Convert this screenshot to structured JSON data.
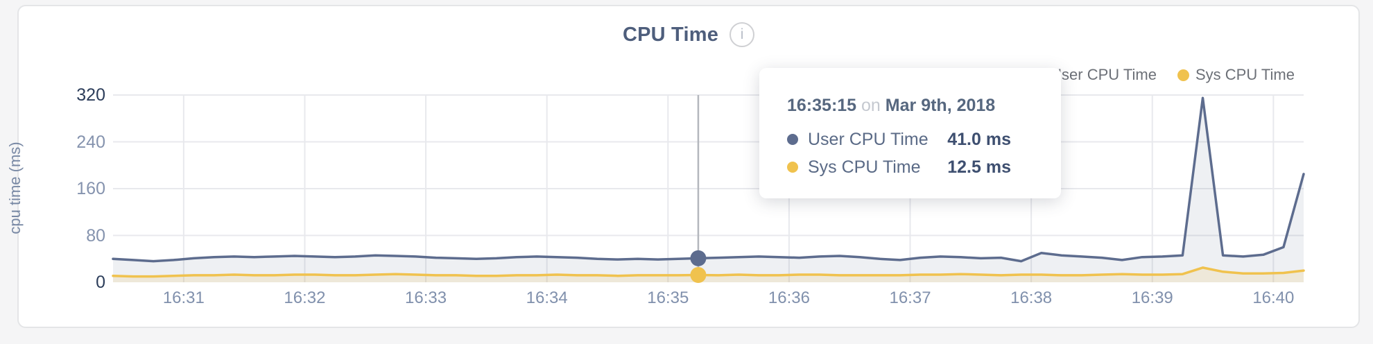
{
  "header": {
    "title": "CPU Time",
    "info_glyph": "i"
  },
  "legend": {
    "items": [
      {
        "label": "User CPU Time",
        "color": "#5d6c8e"
      },
      {
        "label": "Sys CPU Time",
        "color": "#f0c24e"
      }
    ]
  },
  "axes": {
    "y_label": "cpu time (ms)",
    "y_ticks": [
      320,
      240,
      160,
      80,
      0
    ],
    "x_ticks": [
      "16:31",
      "16:32",
      "16:33",
      "16:34",
      "16:35",
      "16:36",
      "16:37",
      "16:38",
      "16:39",
      "16:40"
    ]
  },
  "tooltip": {
    "time": "16:35:15",
    "on_word": "on",
    "date": "Mar 9th, 2018",
    "rows": [
      {
        "label": "User CPU Time",
        "value": "41.0 ms",
        "color": "#5d6c8e"
      },
      {
        "label": "Sys CPU Time",
        "value": "12.5 ms",
        "color": "#f0c24e"
      }
    ]
  },
  "chart_data": {
    "type": "area",
    "title": "CPU Time",
    "ylabel": "cpu time (ms)",
    "ylim": [
      0,
      320
    ],
    "y_ticks": [
      0,
      80,
      160,
      240,
      320
    ],
    "x_tick_labels": [
      "16:31",
      "16:32",
      "16:33",
      "16:34",
      "16:35",
      "16:36",
      "16:37",
      "16:38",
      "16:39",
      "16:40"
    ],
    "grid": true,
    "legend_position": "top-right",
    "x": [
      "16:30:25",
      "16:30:35",
      "16:30:45",
      "16:30:55",
      "16:31:05",
      "16:31:15",
      "16:31:25",
      "16:31:35",
      "16:31:45",
      "16:31:55",
      "16:32:05",
      "16:32:15",
      "16:32:25",
      "16:32:35",
      "16:32:45",
      "16:32:55",
      "16:33:05",
      "16:33:15",
      "16:33:25",
      "16:33:35",
      "16:33:45",
      "16:33:55",
      "16:34:05",
      "16:34:15",
      "16:34:25",
      "16:34:35",
      "16:34:45",
      "16:34:55",
      "16:35:05",
      "16:35:15",
      "16:35:25",
      "16:35:35",
      "16:35:45",
      "16:35:55",
      "16:36:05",
      "16:36:15",
      "16:36:25",
      "16:36:35",
      "16:36:45",
      "16:36:55",
      "16:37:05",
      "16:37:15",
      "16:37:25",
      "16:37:35",
      "16:37:45",
      "16:37:55",
      "16:38:05",
      "16:38:15",
      "16:38:25",
      "16:38:35",
      "16:38:45",
      "16:38:55",
      "16:39:05",
      "16:39:15",
      "16:39:25",
      "16:39:35",
      "16:39:45",
      "16:39:55",
      "16:40:05",
      "16:40:15"
    ],
    "series": [
      {
        "name": "User CPU Time",
        "color": "#5d6c8e",
        "fill": "rgba(93,108,142,0.10)",
        "values": [
          40,
          38,
          36,
          38,
          41,
          43,
          44,
          43,
          44,
          45,
          44,
          43,
          44,
          46,
          45,
          44,
          42,
          41,
          40,
          41,
          43,
          44,
          43,
          42,
          40,
          39,
          40,
          39,
          40,
          41,
          42,
          43,
          44,
          43,
          42,
          44,
          45,
          43,
          40,
          38,
          42,
          44,
          43,
          41,
          42,
          36,
          50,
          46,
          44,
          42,
          38,
          43,
          44,
          46,
          315,
          46,
          44,
          47,
          60,
          185
        ]
      },
      {
        "name": "Sys CPU Time",
        "color": "#f0c24e",
        "fill": "rgba(240,194,78,0.16)",
        "values": [
          11,
          10,
          10,
          11,
          12,
          12,
          13,
          12,
          12,
          13,
          13,
          12,
          12,
          13,
          14,
          13,
          12,
          12,
          11,
          11,
          12,
          12,
          13,
          12,
          12,
          11,
          12,
          12,
          12,
          12.5,
          12,
          13,
          12,
          12,
          13,
          13,
          12,
          12,
          12,
          12,
          13,
          13,
          14,
          13,
          12,
          13,
          13,
          12,
          12,
          13,
          14,
          13,
          13,
          14,
          25,
          18,
          15,
          15,
          16,
          20
        ]
      }
    ],
    "hover": {
      "time": "16:35:15",
      "values": [
        41.0,
        12.5
      ]
    },
    "colors": {
      "grid": "#e8e9ed",
      "crosshair": "#b4b7bd"
    }
  }
}
